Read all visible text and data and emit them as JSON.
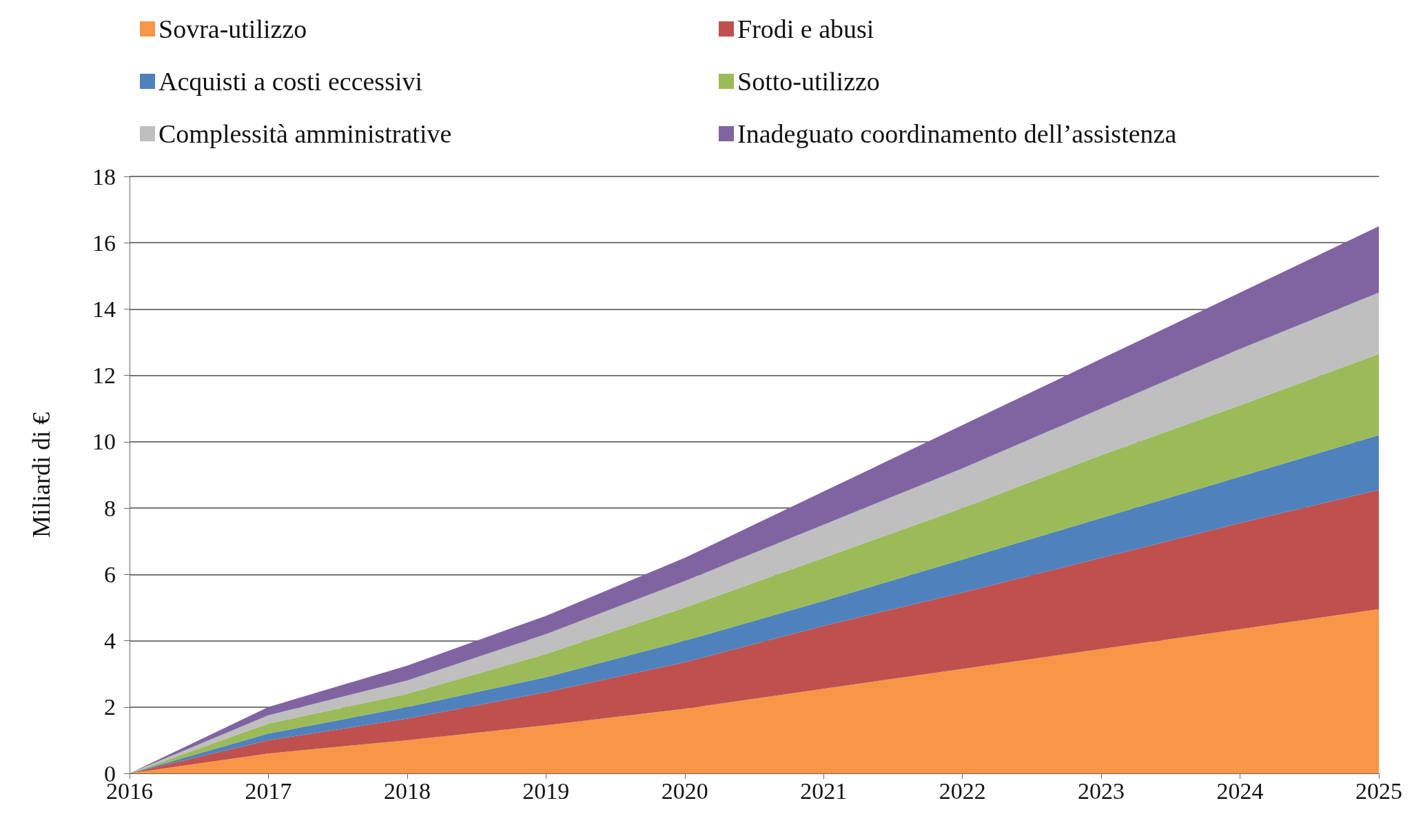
{
  "chart_data": {
    "type": "area",
    "stacked": true,
    "ylabel": "Miliardi di €",
    "x": [
      2016,
      2017,
      2018,
      2019,
      2020,
      2021,
      2022,
      2023,
      2024,
      2025
    ],
    "xlim": [
      2016,
      2025
    ],
    "xticks": [
      2016,
      2017,
      2018,
      2019,
      2020,
      2021,
      2022,
      2023,
      2024,
      2025
    ],
    "ylim": [
      0,
      18
    ],
    "yticks": [
      0,
      2,
      4,
      6,
      8,
      10,
      12,
      14,
      16,
      18
    ],
    "grid": "y",
    "legend": "top",
    "series": [
      {
        "name": "Sovra-utilizzo",
        "color": "#f79646",
        "values": [
          0,
          0.6,
          1.0,
          1.45,
          1.95,
          2.55,
          3.15,
          3.75,
          4.35,
          4.95
        ]
      },
      {
        "name": "Frodi e abusi",
        "color": "#c0504d",
        "values": [
          0,
          0.4,
          0.65,
          1.0,
          1.4,
          1.9,
          2.3,
          2.75,
          3.2,
          3.6
        ]
      },
      {
        "name": "Acquisti a costi eccessivi",
        "color": "#4f81bd",
        "values": [
          0,
          0.2,
          0.35,
          0.45,
          0.65,
          0.75,
          1.0,
          1.2,
          1.4,
          1.65
        ]
      },
      {
        "name": "Sotto-utilizzo",
        "color": "#9bbb59",
        "values": [
          0,
          0.3,
          0.4,
          0.7,
          1.0,
          1.3,
          1.55,
          1.9,
          2.15,
          2.45
        ]
      },
      {
        "name": "Complessità amministrative",
        "color": "#bfbfbf",
        "values": [
          0,
          0.25,
          0.4,
          0.6,
          0.8,
          1.0,
          1.2,
          1.4,
          1.7,
          1.85
        ]
      },
      {
        "name": "Inadeguato coordinamento dell’assistenza",
        "color": "#8064a2",
        "values": [
          0,
          0.25,
          0.45,
          0.55,
          0.7,
          1.0,
          1.3,
          1.5,
          1.7,
          2.0
        ]
      }
    ]
  }
}
